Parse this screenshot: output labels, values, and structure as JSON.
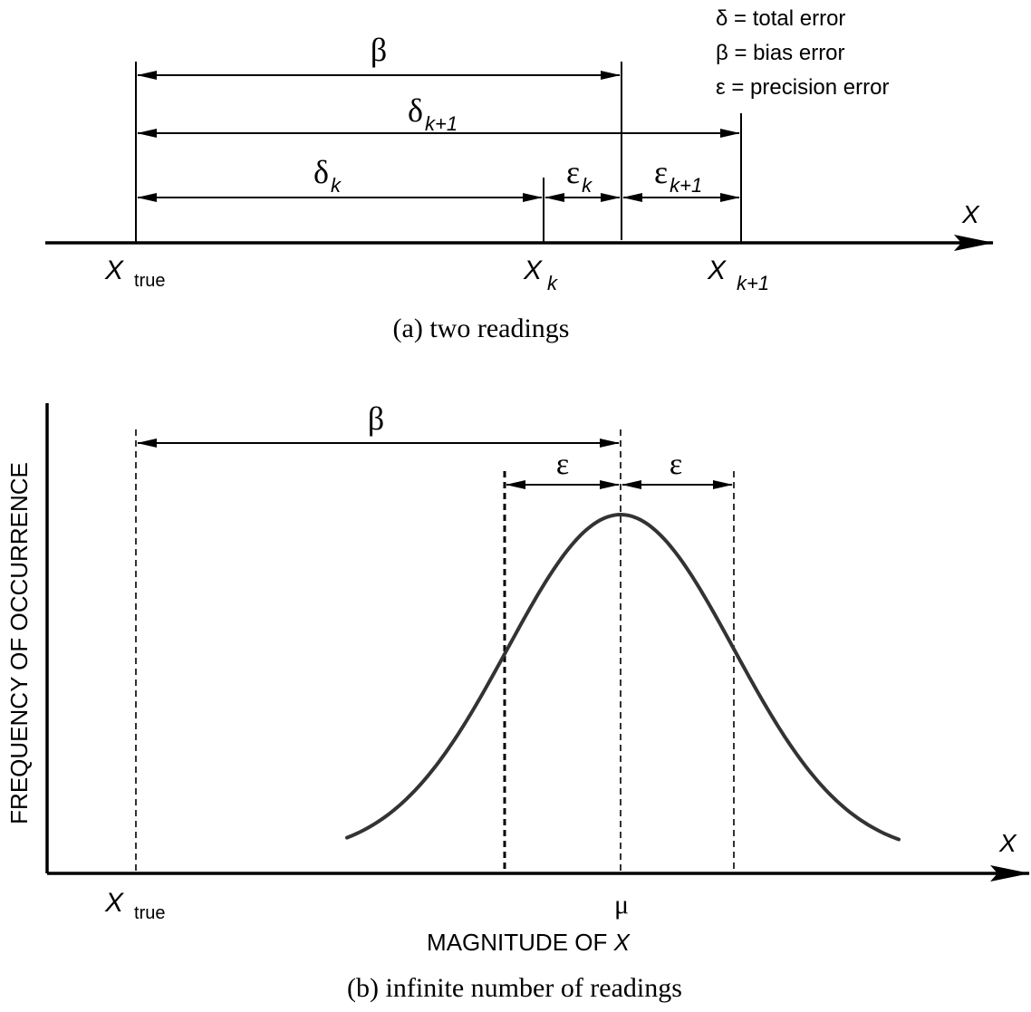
{
  "legend": {
    "delta": "δ = total error",
    "beta": "β = bias error",
    "epsilon": "ε = precision error"
  },
  "panel_a": {
    "beta": "β",
    "delta": "δ",
    "delta_sub_k1": "k+1",
    "delta_sub_k": "k",
    "epsilon": "ε",
    "epsilon_sub_k": "k",
    "epsilon_sub_k1": "k+1",
    "axis_label": "X",
    "x_true_main": "X",
    "x_true_sub": "true",
    "x_k_main": "X",
    "x_k_sub": "k",
    "x_k1_main": "X",
    "x_k1_sub": "k+1",
    "caption": "(a)  two readings"
  },
  "panel_b": {
    "beta": "β",
    "epsilon_left": "ε",
    "epsilon_right": "ε",
    "y_label": "FREQUENCY OF OCCURRENCE",
    "axis_label": "X",
    "x_true_main": "X",
    "x_true_sub": "true",
    "mu": "μ",
    "x_label_text": "MAGNITUDE OF ",
    "x_label_var": "X",
    "caption": "(b)  infinite number of readings"
  }
}
